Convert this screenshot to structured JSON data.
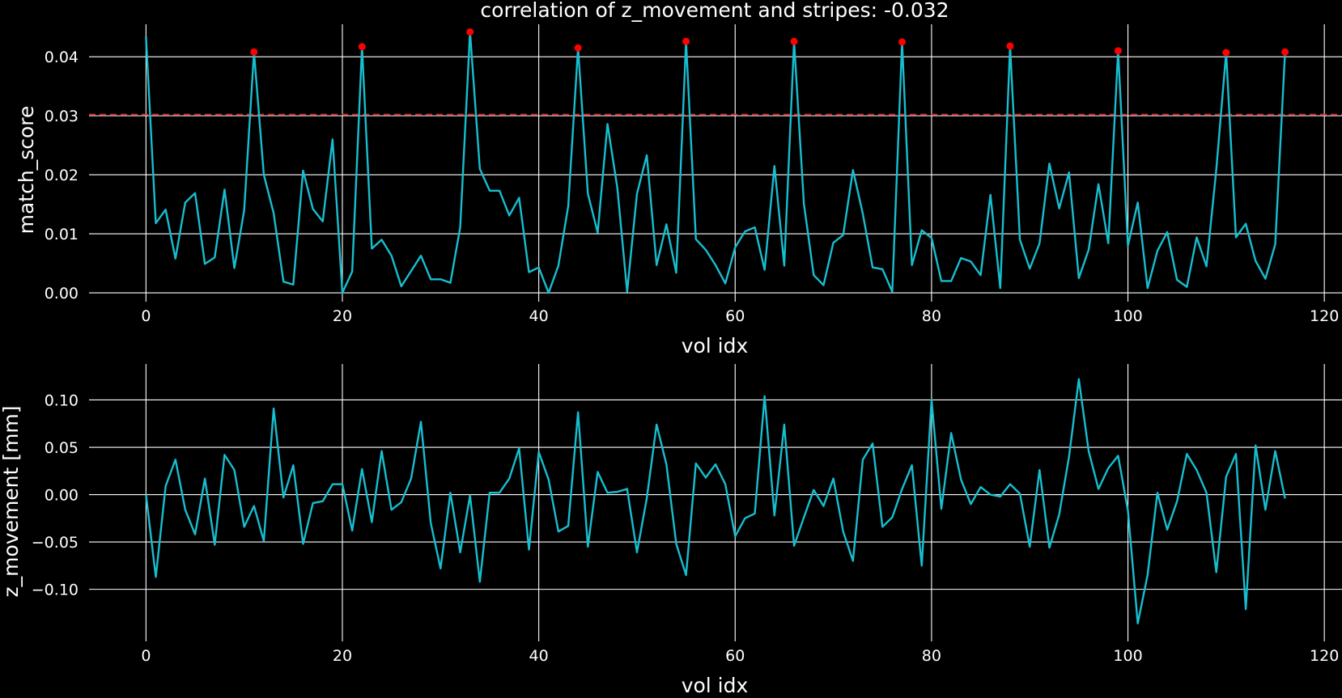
{
  "title": "correlation of z_movement and stripes: -0.032",
  "colors": {
    "background": "#000000",
    "grid": "#ffffff",
    "line": "#17becf",
    "peak_marker": "#ff0000",
    "threshold": "#d62728",
    "text": "#ffffff"
  },
  "chart_data": [
    {
      "type": "line",
      "xlabel": "vol idx",
      "ylabel": "match_score",
      "xlim": [
        -5.8,
        121.8
      ],
      "ylim": [
        -0.0015,
        0.0455
      ],
      "xticks": [
        0,
        20,
        40,
        60,
        80,
        100,
        120
      ],
      "xtick_labels": [
        "0",
        "20",
        "40",
        "60",
        "80",
        "100",
        "120"
      ],
      "yticks": [
        0.0,
        0.01,
        0.02,
        0.03,
        0.04
      ],
      "ytick_labels": [
        "0.00",
        "0.01",
        "0.02",
        "0.03",
        "0.04"
      ],
      "grid": true,
      "threshold": 0.0302,
      "series": [
        {
          "values": [
            0.0434,
            0.0118,
            0.0141,
            0.0058,
            0.0153,
            0.0169,
            0.0049,
            0.006,
            0.0175,
            0.0042,
            0.014,
            0.0408,
            0.02,
            0.0135,
            0.0019,
            0.0014,
            0.0207,
            0.0142,
            0.0121,
            0.026,
            0.0,
            0.0036,
            0.0417,
            0.0075,
            0.009,
            0.0063,
            0.0011,
            0.0037,
            0.0063,
            0.0023,
            0.0023,
            0.0017,
            0.0111,
            0.0442,
            0.021,
            0.0173,
            0.0173,
            0.0131,
            0.0161,
            0.0035,
            0.0043,
            0.0,
            0.0046,
            0.0147,
            0.0415,
            0.0168,
            0.0102,
            0.0286,
            0.0178,
            0.0002,
            0.0168,
            0.0233,
            0.0047,
            0.0116,
            0.0034,
            0.0426,
            0.0091,
            0.0073,
            0.0047,
            0.0016,
            0.0077,
            0.0104,
            0.0111,
            0.0039,
            0.0215,
            0.0046,
            0.0426,
            0.0151,
            0.003,
            0.0013,
            0.0085,
            0.0098,
            0.0208,
            0.0134,
            0.0043,
            0.004,
            0.0002,
            0.0425,
            0.0047,
            0.0106,
            0.0093,
            0.002,
            0.002,
            0.0059,
            0.0053,
            0.003,
            0.0166,
            0.0008,
            0.0418,
            0.009,
            0.0041,
            0.0084,
            0.0219,
            0.0143,
            0.0204,
            0.0025,
            0.0073,
            0.0184,
            0.0084,
            0.041,
            0.008,
            0.0153,
            0.0008,
            0.0071,
            0.0103,
            0.0022,
            0.001,
            0.0094,
            0.0045,
            0.0209,
            0.0407,
            0.0094,
            0.0117,
            0.0054,
            0.0024,
            0.0082,
            0.0408
          ]
        }
      ],
      "peaks": {
        "x": [
          11,
          22,
          33,
          44,
          55,
          66,
          77,
          88,
          99,
          110,
          116
        ],
        "y": [
          0.0408,
          0.0417,
          0.0442,
          0.0415,
          0.0426,
          0.0426,
          0.0425,
          0.0418,
          0.041,
          0.0407,
          0.0408
        ]
      }
    },
    {
      "type": "line",
      "xlabel": "vol idx",
      "ylabel": "z_movement [mm]",
      "xlim": [
        -5.8,
        121.8
      ],
      "ylim": [
        -0.155,
        0.138
      ],
      "xticks": [
        0,
        20,
        40,
        60,
        80,
        100,
        120
      ],
      "xtick_labels": [
        "0",
        "20",
        "40",
        "60",
        "80",
        "100",
        "120"
      ],
      "yticks": [
        -0.1,
        -0.05,
        0.0,
        0.05,
        0.1
      ],
      "ytick_labels": [
        "−0.10",
        "−0.05",
        "0.00",
        "0.05",
        "0.10"
      ],
      "grid": true,
      "series": [
        {
          "values": [
            0.0,
            -0.087,
            0.009,
            0.037,
            -0.016,
            -0.042,
            0.017,
            -0.053,
            0.042,
            0.026,
            -0.034,
            -0.012,
            -0.049,
            0.091,
            -0.003,
            0.031,
            -0.052,
            -0.009,
            -0.007,
            0.011,
            0.011,
            -0.038,
            0.027,
            -0.029,
            0.046,
            -0.016,
            -0.008,
            0.017,
            0.077,
            -0.03,
            -0.078,
            0.002,
            -0.061,
            -0.001,
            -0.092,
            0.002,
            0.002,
            0.017,
            0.049,
            -0.058,
            0.045,
            0.016,
            -0.039,
            -0.033,
            0.087,
            -0.055,
            0.024,
            0.002,
            0.003,
            0.006,
            -0.061,
            -0.004,
            0.074,
            0.032,
            -0.052,
            -0.085,
            0.033,
            0.018,
            0.032,
            0.011,
            -0.044,
            -0.025,
            -0.02,
            0.104,
            -0.022,
            0.074,
            -0.054,
            -0.024,
            0.005,
            -0.012,
            0.017,
            -0.039,
            -0.07,
            0.037,
            0.054,
            -0.034,
            -0.024,
            0.006,
            0.031,
            -0.075,
            0.1,
            -0.015,
            0.065,
            0.016,
            -0.01,
            0.008,
            0.0,
            -0.002,
            0.011,
            0.001,
            -0.055,
            0.026,
            -0.056,
            -0.021,
            0.04,
            0.122,
            0.046,
            0.006,
            0.028,
            0.041,
            -0.017,
            -0.136,
            -0.085,
            0.002,
            -0.037,
            -0.007,
            0.043,
            0.026,
            0.002,
            -0.082,
            0.019,
            0.043,
            -0.121,
            0.052,
            -0.016,
            0.046,
            -0.004
          ]
        }
      ]
    }
  ]
}
